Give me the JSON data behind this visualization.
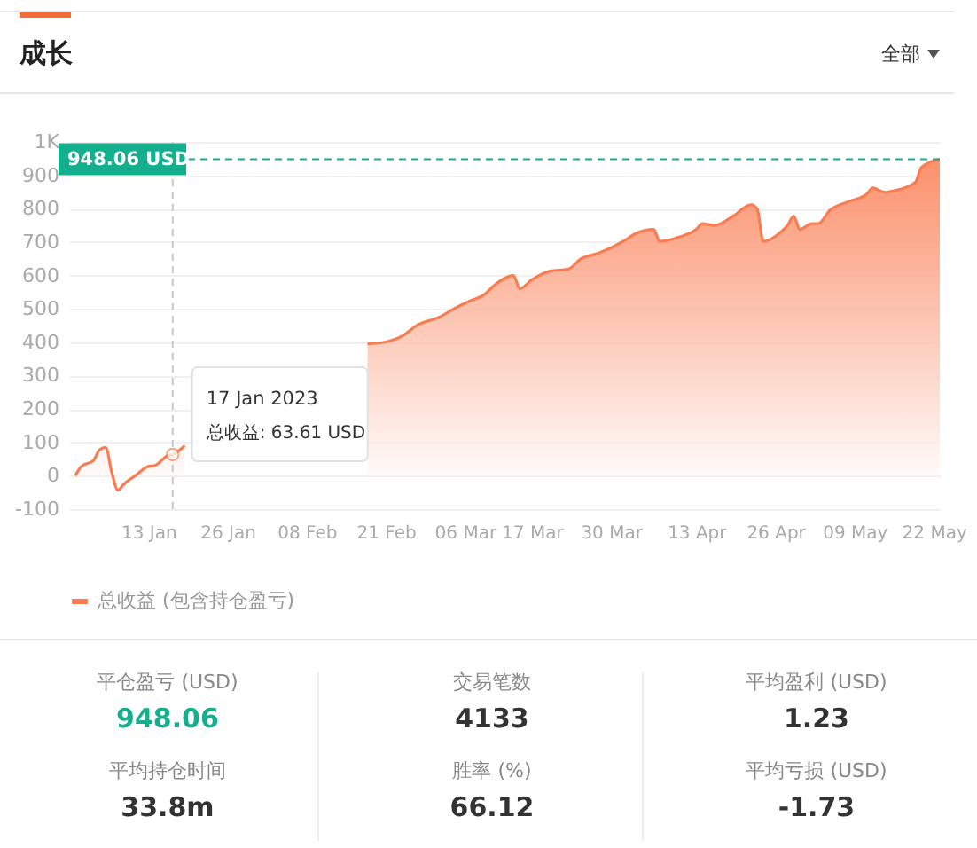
{
  "chart_data": [
    {
      "type": "area",
      "title": "成长",
      "annotations": [
        "全部",
        "17 Jan 2023",
        "总收益: 63.61 USD"
      ],
      "x": [
        "2023-01-01",
        "2023-01-02",
        "2023-01-04",
        "2023-01-05",
        "2023-01-06",
        "2023-01-07",
        "2023-01-08",
        "2023-01-09",
        "2023-01-11",
        "2023-01-13",
        "2023-01-14",
        "2023-01-16",
        "2023-01-17",
        "2023-01-19",
        "2023-01-31",
        "2023-02-13",
        "2023-02-16",
        "2023-02-18",
        "2023-02-21",
        "2023-02-24",
        "2023-02-26",
        "2023-03-02",
        "2023-03-04",
        "2023-03-07",
        "2023-03-09",
        "2023-03-11",
        "2023-03-14",
        "2023-03-15",
        "2023-03-17",
        "2023-03-20",
        "2023-03-23",
        "2023-03-25",
        "2023-03-28",
        "2023-04-01",
        "2023-04-03",
        "2023-04-06",
        "2023-04-07",
        "2023-04-10",
        "2023-04-13",
        "2023-04-14",
        "2023-04-16",
        "2023-04-19",
        "2023-04-22",
        "2023-04-23",
        "2023-04-24",
        "2023-04-27",
        "2023-04-28",
        "2023-04-29",
        "2023-04-30",
        "2023-05-02",
        "2023-05-03",
        "2023-05-05",
        "2023-05-08",
        "2023-05-11",
        "2023-05-12",
        "2023-05-14",
        "2023-05-16",
        "2023-05-19",
        "2023-05-20",
        "2023-05-23"
      ],
      "series": [
        {
          "name": "总收益 (包含持仓盈亏)",
          "color": "#fa7d52",
          "values": [
            0,
            28,
            46,
            78,
            85,
            10,
            -43,
            -25,
            2,
            28,
            30,
            58,
            63.61,
            90,
            null,
            null,
            null,
            395,
            401,
            422,
            449,
            477,
            498,
            525,
            540,
            573,
            600,
            560,
            587,
            613,
            619,
            649,
            667,
            702,
            725,
            738,
            702,
            714,
            738,
            755,
            750,
            777,
            812,
            800,
            702,
            732,
            750,
            778,
            738,
            755,
            755,
            796,
            821,
            844,
            862,
            849,
            856,
            879,
            924,
            948.06
          ]
        }
      ],
      "xlim": [
        "2022-12-31",
        "2023-05-23"
      ],
      "xticks": [
        {
          "value": "2023-01-13",
          "label": "13 Jan"
        },
        {
          "value": "2023-01-26",
          "label": "26 Jan"
        },
        {
          "value": "2023-02-08",
          "label": "08 Feb"
        },
        {
          "value": "2023-02-21",
          "label": "21 Feb"
        },
        {
          "value": "2023-03-06",
          "label": "06 Mar"
        },
        {
          "value": "2023-03-17",
          "label": "17 Mar"
        },
        {
          "value": "2023-03-30",
          "label": "30 Mar"
        },
        {
          "value": "2023-04-13",
          "label": "13 Apr"
        },
        {
          "value": "2023-04-26",
          "label": "26 Apr"
        },
        {
          "value": "2023-05-09",
          "label": "09 May"
        },
        {
          "value": "2023-05-22",
          "label": "22 May"
        }
      ],
      "ylim": [
        -100,
        1000
      ],
      "yticks": [
        -100,
        0,
        100,
        200,
        300,
        400,
        500,
        600,
        700,
        800,
        900,
        {
          "value": 1000,
          "label": "1K"
        }
      ],
      "ref_lines": [
        {
          "axis": "y",
          "value": 948.06,
          "label": "948.06 USD",
          "color": "#14b08e",
          "line_style": "dashed"
        },
        {
          "axis": "x",
          "value": "2023-01-17",
          "label": null,
          "color": "#c8c8c8",
          "line_style": "dashed"
        }
      ],
      "grid": "y",
      "legend": "bottom"
    },
    {
      "type": "other",
      "annotations": [
        "平仓盈亏 (USD)",
        "948.06",
        "交易笔数",
        "4133",
        "平均盈利 (USD)",
        "1.23",
        "平均持仓时间",
        "33.8m",
        "胜率 (%)",
        "66.12",
        "平均亏损 (USD)",
        "-1.73"
      ]
    }
  ]
}
